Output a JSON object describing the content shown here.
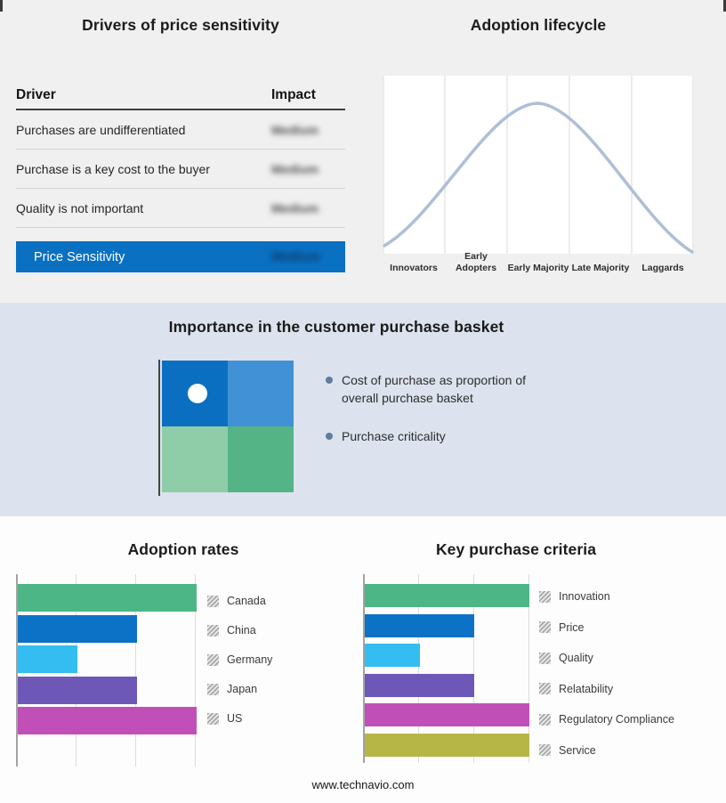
{
  "sections": {
    "drivers": {
      "title": "Drivers of price sensitivity"
    },
    "lifecycle": {
      "title": "Adoption lifecycle"
    },
    "basket": {
      "title": "Importance in the customer purchase basket",
      "bullets": [
        "Cost of purchase as proportion of overall purchase basket",
        "Purchase criticality"
      ],
      "bullet_color": "#5e7da0",
      "quadrant_colors": {
        "top_left": "#0b6fc1",
        "top_right": "#4191d6",
        "bottom_left": "#8ecda8",
        "bottom_right": "#54b485"
      }
    },
    "adoption_rates": {
      "title": "Adoption rates"
    },
    "criteria": {
      "title": "Key purchase criteria"
    }
  },
  "footer": {
    "url": "www.technavio.com"
  },
  "chart_data": [
    {
      "type": "table",
      "title": "Drivers of price sensitivity",
      "columns": [
        "Driver",
        "Impact"
      ],
      "rows": [
        {
          "driver": "Purchases are undifferentiated",
          "impact": "Medium",
          "impact_blurred": true
        },
        {
          "driver": "Purchase is a key cost to the buyer",
          "impact": "Medium",
          "impact_blurred": true
        },
        {
          "driver": "Quality is not important",
          "impact": "Medium",
          "impact_blurred": true
        },
        {
          "driver": "Price Sensitivity",
          "impact": "Medium",
          "impact_blurred": true,
          "highlight": true
        }
      ],
      "highlight_color": "#0a70c2"
    },
    {
      "type": "line",
      "title": "Adoption lifecycle",
      "categories": [
        "Innovators",
        "Early Adopters",
        "Early Majority",
        "Late Majority",
        "Laggards"
      ],
      "values": [
        0.15,
        0.65,
        1.0,
        0.65,
        0.15
      ],
      "shape": "bell curve peaking over Early Majority",
      "curve_color": "#aebfd6",
      "grid": true
    },
    {
      "type": "bar",
      "title": "Adoption rates",
      "orientation": "horizontal",
      "categories": [
        "Canada",
        "China",
        "Germany",
        "Japan",
        "US"
      ],
      "values": [
        3,
        2,
        1,
        2,
        3
      ],
      "xlim": [
        0,
        3
      ],
      "colors": [
        "#4cb687",
        "#0c72c6",
        "#33bdf0",
        "#6d58b8",
        "#c050b8"
      ],
      "grid": true,
      "legend_position": "right"
    },
    {
      "type": "bar",
      "title": "Key purchase criteria",
      "orientation": "horizontal",
      "categories": [
        "Innovation",
        "Price",
        "Quality",
        "Relatability",
        "Regulatory Compliance",
        "Service"
      ],
      "values": [
        3,
        2,
        1,
        2,
        3,
        3
      ],
      "xlim": [
        0,
        3
      ],
      "colors": [
        "#4cb687",
        "#0c72c6",
        "#33bdf0",
        "#6d58b8",
        "#c050b8",
        "#b6b647"
      ],
      "grid": true,
      "legend_position": "right"
    }
  ]
}
